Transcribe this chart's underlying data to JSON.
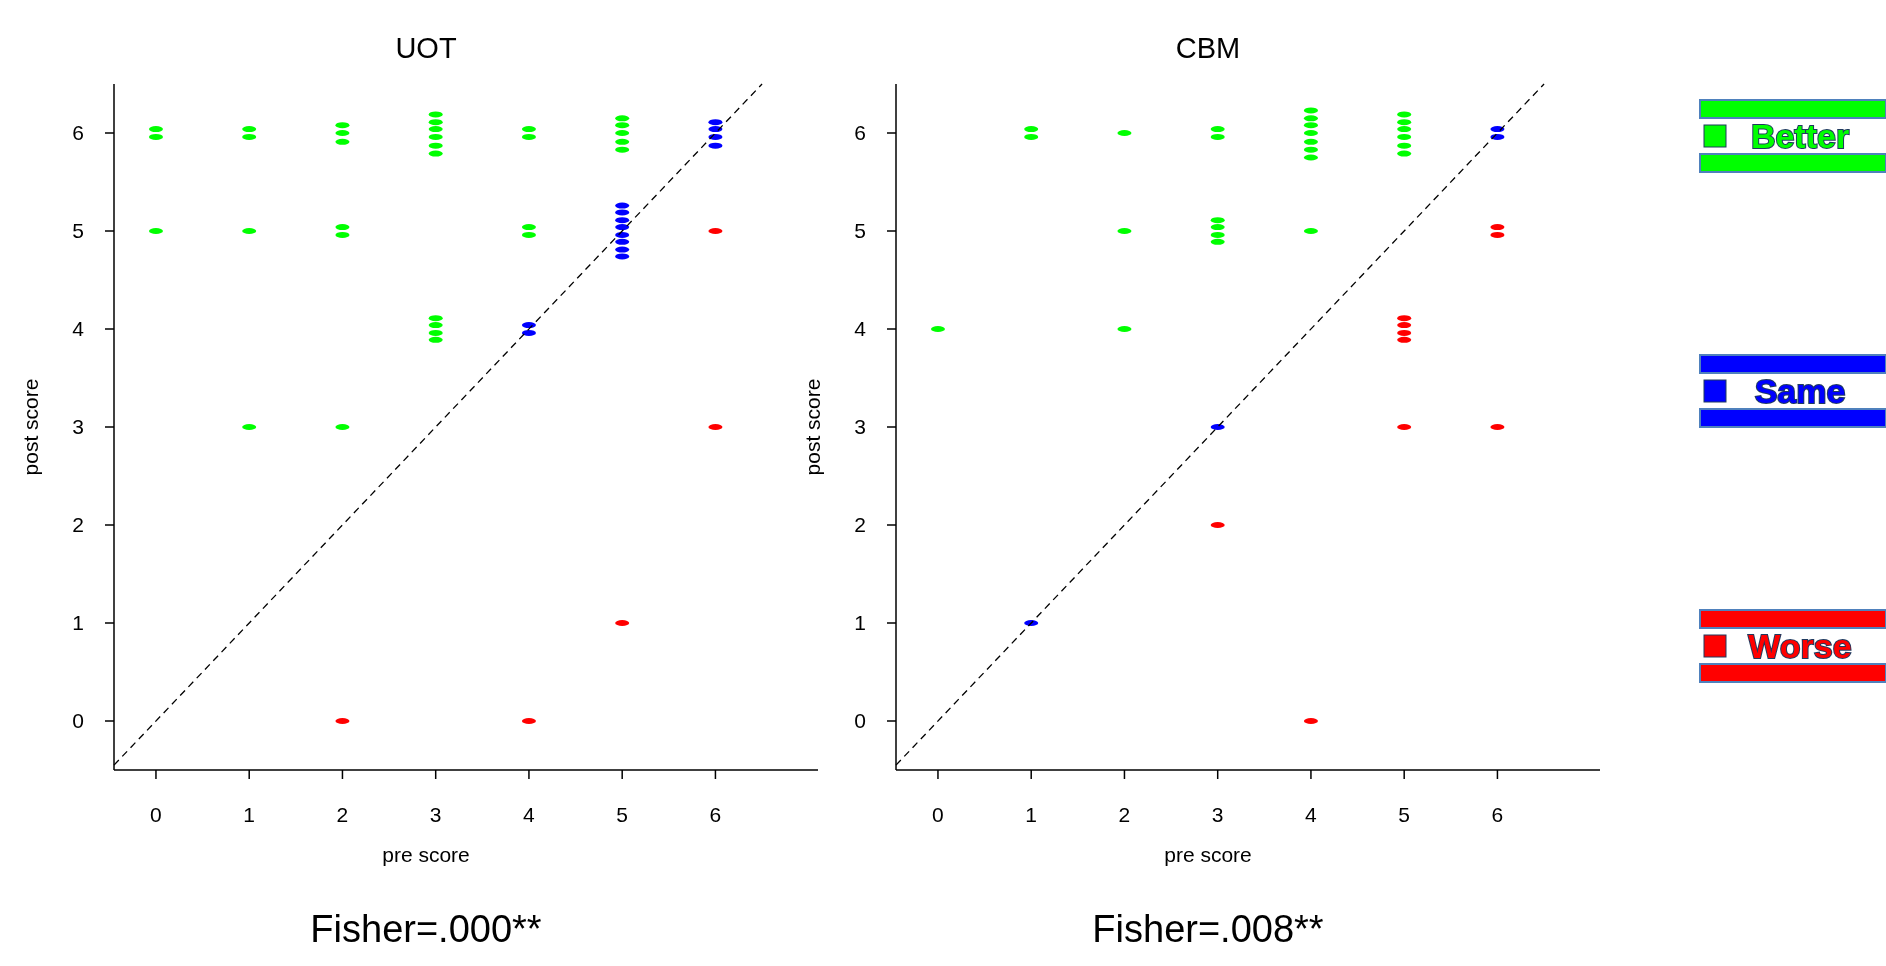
{
  "chart_data": [
    {
      "type": "scatter",
      "title": "UOT",
      "xlabel": "pre score",
      "ylabel": "post score",
      "xlim": [
        -0.45,
        7.1
      ],
      "ylim": [
        -0.5,
        6.5
      ],
      "xticks": [
        0,
        1,
        2,
        3,
        4,
        5,
        6
      ],
      "yticks": [
        0,
        1,
        2,
        3,
        4,
        5,
        6
      ],
      "grid": false,
      "line_style": "dashed",
      "annotations": [
        "Fisher=.000**"
      ],
      "series": [
        {
          "color": "#00ff00",
          "x": [
            0,
            0,
            0,
            1,
            1,
            1,
            1,
            2,
            2,
            2,
            2,
            2,
            2,
            3,
            3,
            3,
            3,
            3,
            3,
            3,
            3,
            3,
            3,
            4,
            4,
            4,
            4,
            5,
            5,
            5,
            5,
            5
          ],
          "values": [
            5.96,
            6.04,
            5,
            5.96,
            6.04,
            5,
            3,
            6.08,
            6,
            5.91,
            5.04,
            4.96,
            3,
            6.19,
            6.11,
            6.04,
            5.96,
            5.87,
            5.79,
            4.11,
            4.04,
            3.96,
            3.89,
            5.96,
            6.04,
            5.04,
            4.96,
            6.15,
            6.08,
            6,
            5.91,
            5.83
          ]
        },
        {
          "color": "#0000ff",
          "x": [
            4,
            4,
            5,
            5,
            5,
            5,
            5,
            5,
            5,
            5,
            6,
            6,
            6,
            6
          ],
          "values": [
            4.04,
            3.96,
            5.26,
            5.19,
            5.11,
            5.04,
            4.96,
            4.89,
            4.81,
            4.74,
            6.11,
            6.04,
            5.96,
            5.87
          ]
        },
        {
          "color": "#ff0000",
          "x": [
            6,
            6,
            5,
            2,
            4
          ],
          "values": [
            5,
            3,
            1,
            0,
            0
          ]
        },
        {
          "type": "line",
          "color": "#000000",
          "x": [
            -0.45,
            6.5
          ],
          "values": [
            -0.45,
            6.5
          ]
        }
      ]
    },
    {
      "type": "scatter",
      "title": "CBM",
      "xlabel": "pre score",
      "ylabel": "post score",
      "xlim": [
        -0.45,
        7.1
      ],
      "ylim": [
        -0.5,
        6.5
      ],
      "xticks": [
        0,
        1,
        2,
        3,
        4,
        5,
        6
      ],
      "yticks": [
        0,
        1,
        2,
        3,
        4,
        5,
        6
      ],
      "grid": false,
      "legend": "right",
      "line_style": "dashed",
      "annotations": [
        "Fisher=.008**"
      ],
      "series": [
        {
          "name": "Better",
          "color": "#00ff00",
          "x": [
            0,
            1,
            1,
            2,
            2,
            2,
            3,
            3,
            3,
            3,
            3,
            3,
            4,
            4,
            4,
            4,
            4,
            4,
            4,
            4,
            5,
            5,
            5,
            5,
            5,
            5
          ],
          "values": [
            4,
            5.96,
            6.04,
            6,
            5,
            4,
            5.96,
            6.04,
            5.11,
            5.04,
            4.96,
            4.89,
            6.23,
            6.15,
            6.08,
            6,
            5.91,
            5.83,
            5.75,
            5,
            6.19,
            6.11,
            6.04,
            5.96,
            5.87,
            5.79
          ]
        },
        {
          "name": "Same",
          "color": "#0000ff",
          "x": [
            6,
            6,
            3,
            1
          ],
          "values": [
            6.04,
            5.96,
            3,
            1
          ]
        },
        {
          "name": "Worse",
          "color": "#ff0000",
          "x": [
            6,
            6,
            5,
            5,
            5,
            5,
            5,
            6,
            3,
            4
          ],
          "values": [
            5.04,
            4.96,
            4.11,
            4.04,
            3.96,
            3.89,
            3,
            3,
            2,
            0
          ]
        },
        {
          "type": "line",
          "color": "#000000",
          "x": [
            -0.45,
            6.5
          ],
          "values": [
            -0.45,
            6.5
          ]
        }
      ]
    }
  ]
}
